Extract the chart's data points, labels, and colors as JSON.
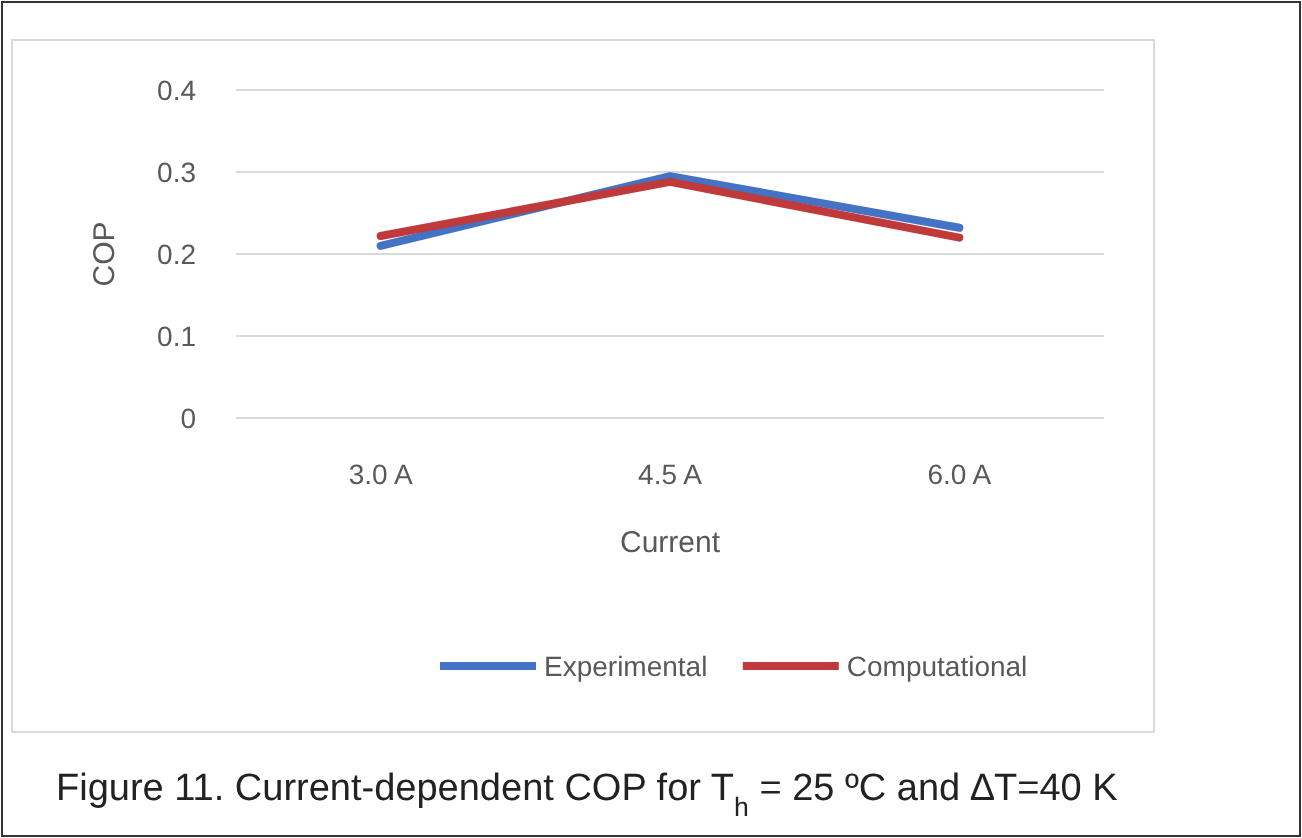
{
  "chart_data": {
    "type": "line",
    "xlabel": "Current",
    "ylabel": "COP",
    "categories": [
      "3.0 A",
      "4.5 A",
      "6.0 A"
    ],
    "series": [
      {
        "name": "Experimental",
        "color": "#4472c4",
        "values": [
          0.21,
          0.295,
          0.232
        ]
      },
      {
        "name": "Computational",
        "color": "#c0393b",
        "values": [
          0.222,
          0.288,
          0.22
        ]
      }
    ],
    "ylim": [
      0,
      0.4
    ],
    "yticks": [
      0,
      0.1,
      0.2,
      0.3,
      0.4
    ],
    "grid": "y",
    "legend": "bottom",
    "marker": "none",
    "line_style": "solid",
    "annotations": [
      "Figure 11. Current-dependent COP for T$_{h}$ = 25 ºC and ∆T=40 K"
    ]
  }
}
